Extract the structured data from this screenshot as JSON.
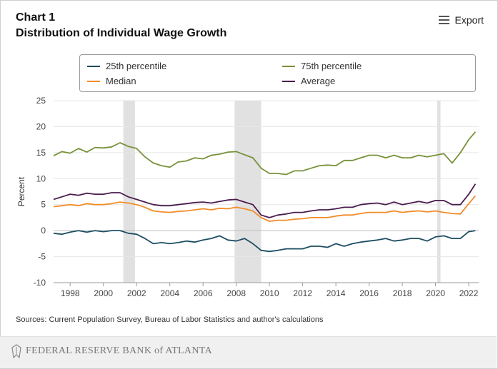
{
  "header": {
    "chart_number": "Chart 1",
    "title": "Distribution of Individual Wage Growth",
    "export_label": "Export"
  },
  "sources": "Sources: Current Population Survey, Bureau of Labor Statistics and author's calculations",
  "footer": {
    "logo_text": "FEDERAL RESERVE BANK of ATLANTA"
  },
  "chart_data": {
    "type": "line",
    "ylabel": "Percent",
    "xlabel": "",
    "ylim": [
      -10,
      25
    ],
    "xlim": [
      1997,
      2022.6
    ],
    "yticks": [
      -10,
      -5,
      0,
      5,
      10,
      15,
      20,
      25
    ],
    "xticks": [
      1998,
      2000,
      2002,
      2004,
      2006,
      2008,
      2010,
      2012,
      2014,
      2016,
      2018,
      2020,
      2022
    ],
    "recessions": [
      [
        2001.2,
        2001.9
      ],
      [
        2007.9,
        2009.5
      ],
      [
        2020.1,
        2020.3
      ]
    ],
    "legend": "top",
    "x": [
      1997.0,
      1997.5,
      1998.0,
      1998.5,
      1999.0,
      1999.5,
      2000.0,
      2000.5,
      2001.0,
      2001.5,
      2002.0,
      2002.5,
      2003.0,
      2003.5,
      2004.0,
      2004.5,
      2005.0,
      2005.5,
      2006.0,
      2006.5,
      2007.0,
      2007.5,
      2008.0,
      2008.5,
      2009.0,
      2009.5,
      2010.0,
      2010.5,
      2011.0,
      2011.5,
      2012.0,
      2012.5,
      2013.0,
      2013.5,
      2014.0,
      2014.5,
      2015.0,
      2015.5,
      2016.0,
      2016.5,
      2017.0,
      2017.5,
      2018.0,
      2018.5,
      2019.0,
      2019.5,
      2020.0,
      2020.5,
      2021.0,
      2021.5,
      2022.0,
      2022.4
    ],
    "series": [
      {
        "name": "25th percentile",
        "color": "#1d4e63",
        "values": [
          -0.5,
          -0.7,
          -0.3,
          0.0,
          -0.3,
          0.0,
          -0.2,
          0.0,
          0.0,
          -0.5,
          -0.7,
          -1.5,
          -2.5,
          -2.3,
          -2.5,
          -2.3,
          -2.0,
          -2.2,
          -1.8,
          -1.5,
          -1.0,
          -1.8,
          -2.0,
          -1.5,
          -2.5,
          -3.8,
          -4.0,
          -3.8,
          -3.5,
          -3.5,
          -3.5,
          -3.0,
          -3.0,
          -3.2,
          -2.5,
          -3.0,
          -2.5,
          -2.2,
          -2.0,
          -1.8,
          -1.5,
          -2.0,
          -1.8,
          -1.5,
          -1.5,
          -2.0,
          -1.2,
          -1.0,
          -1.5,
          -1.5,
          -0.2,
          0.0
        ]
      },
      {
        "name": "Median",
        "color": "#f28c28",
        "values": [
          4.6,
          4.8,
          5.0,
          4.8,
          5.2,
          5.0,
          5.0,
          5.2,
          5.5,
          5.3,
          5.0,
          4.5,
          3.8,
          3.6,
          3.5,
          3.7,
          3.8,
          4.0,
          4.2,
          4.0,
          4.3,
          4.2,
          4.5,
          4.2,
          3.8,
          2.5,
          1.8,
          2.0,
          2.0,
          2.2,
          2.3,
          2.5,
          2.5,
          2.5,
          2.8,
          3.0,
          3.0,
          3.3,
          3.5,
          3.5,
          3.5,
          3.8,
          3.5,
          3.7,
          3.8,
          3.6,
          3.8,
          3.5,
          3.3,
          3.2,
          5.2,
          6.7
        ]
      },
      {
        "name": "75th percentile",
        "color": "#77923a",
        "values": [
          14.4,
          15.2,
          14.9,
          15.8,
          15.1,
          16.0,
          15.9,
          16.1,
          16.9,
          16.2,
          15.8,
          14.2,
          13.0,
          12.5,
          12.2,
          13.2,
          13.4,
          14.0,
          13.8,
          14.5,
          14.7,
          15.1,
          15.2,
          14.6,
          14.0,
          12.0,
          11.0,
          11.0,
          10.8,
          11.5,
          11.5,
          12.0,
          12.5,
          12.6,
          12.5,
          13.5,
          13.5,
          14.0,
          14.5,
          14.5,
          14.0,
          14.5,
          14.0,
          14.0,
          14.5,
          14.2,
          14.5,
          14.8,
          13.0,
          15.0,
          17.5,
          19.0
        ]
      },
      {
        "name": "Average",
        "color": "#4a1c4e",
        "values": [
          6.0,
          6.5,
          7.0,
          6.8,
          7.2,
          7.0,
          7.0,
          7.3,
          7.3,
          6.5,
          6.0,
          5.5,
          5.0,
          4.8,
          4.8,
          5.0,
          5.2,
          5.4,
          5.5,
          5.3,
          5.6,
          5.9,
          6.0,
          5.5,
          5.0,
          3.0,
          2.5,
          3.0,
          3.2,
          3.5,
          3.5,
          3.8,
          4.0,
          4.0,
          4.2,
          4.5,
          4.5,
          5.0,
          5.2,
          5.3,
          5.0,
          5.5,
          5.0,
          5.3,
          5.6,
          5.3,
          5.8,
          5.8,
          5.0,
          5.0,
          7.0,
          9.0
        ]
      }
    ]
  }
}
